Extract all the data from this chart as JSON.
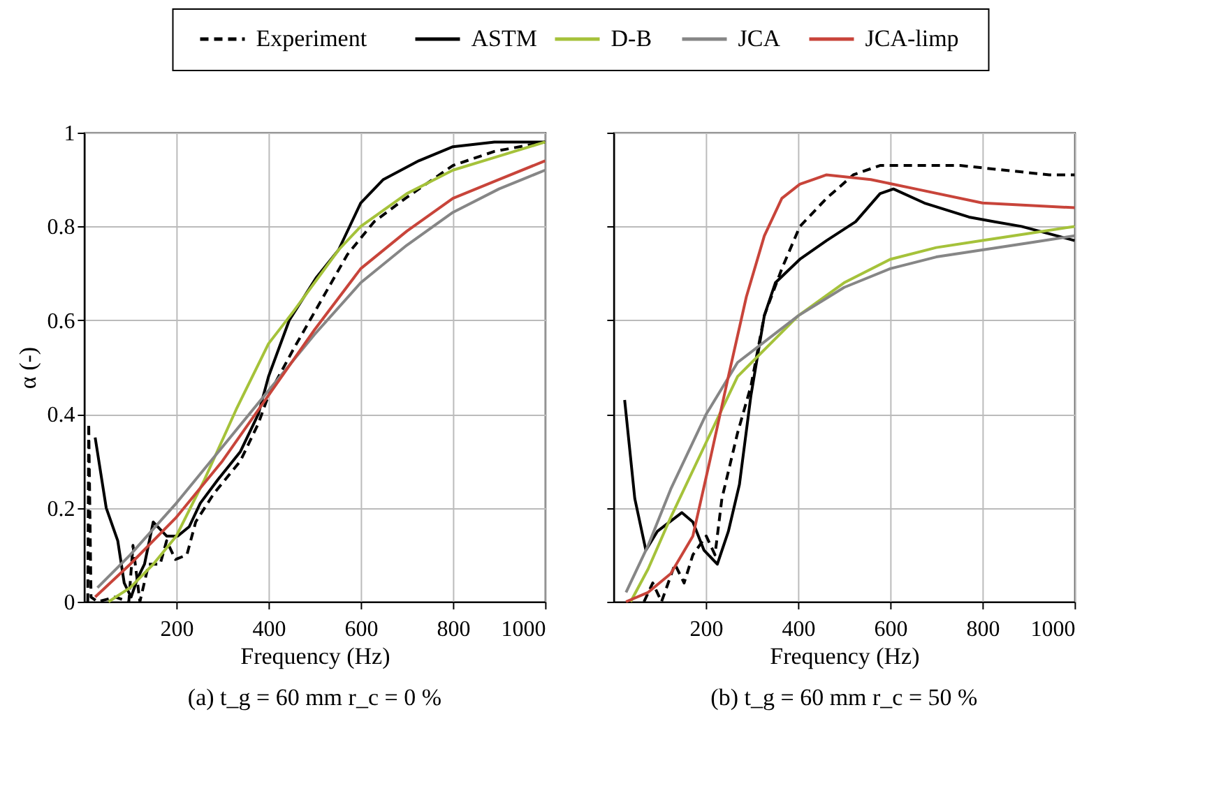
{
  "chart_data": [
    {
      "type": "line",
      "title": "(a) t_g = 60 mm r_c = 0 %",
      "xlabel": "Frequency (Hz)",
      "ylabel": "α (-)",
      "xlim": [
        0,
        1000
      ],
      "xticks": [
        200,
        400,
        600,
        800,
        1000
      ],
      "ylim": [
        0,
        1
      ],
      "yticks": [
        0,
        0.2,
        0.4,
        0.6,
        0.8,
        1
      ],
      "grid": true,
      "legend": "top",
      "series": [
        {
          "name": "Experiment",
          "color": "#000000",
          "line_style": "dashed",
          "x": [
            8,
            10,
            15,
            29,
            68,
            97,
            106,
            121,
            140,
            165,
            179,
            198,
            223,
            242,
            281,
            339,
            378,
            400,
            455,
            513,
            571,
            629,
            697,
            800,
            890,
            1000
          ],
          "values": [
            0,
            0.38,
            0.01,
            0,
            0.01,
            0,
            0.12,
            0,
            0.08,
            0.08,
            0.13,
            0.09,
            0.1,
            0.17,
            0.23,
            0.3,
            0.38,
            0.44,
            0.54,
            0.64,
            0.74,
            0.81,
            0.86,
            0.93,
            0.96,
            0.98
          ]
        },
        {
          "name": "ASTM",
          "color": "#000000",
          "line_style": "solid",
          "x": [
            24,
            48,
            73,
            87,
            102,
            116,
            131,
            150,
            179,
            203,
            228,
            252,
            290,
            339,
            378,
            400,
            445,
            503,
            552,
            600,
            649,
            726,
            800,
            890,
            1000
          ],
          "values": [
            0.35,
            0.2,
            0.13,
            0.04,
            0.01,
            0.05,
            0.08,
            0.17,
            0.14,
            0.14,
            0.16,
            0.21,
            0.26,
            0.32,
            0.4,
            0.48,
            0.6,
            0.69,
            0.75,
            0.85,
            0.9,
            0.94,
            0.97,
            0.98,
            0.98
          ]
        },
        {
          "name": "D-B",
          "color": "#a5c23a",
          "line_style": "solid",
          "x": [
            53,
            100,
            150,
            200,
            261,
            330,
            400,
            455,
            552,
            600,
            700,
            800,
            900,
            1000
          ],
          "values": [
            0,
            0.03,
            0.08,
            0.14,
            0.26,
            0.41,
            0.55,
            0.62,
            0.75,
            0.8,
            0.87,
            0.92,
            0.95,
            0.98
          ]
        },
        {
          "name": "JCA",
          "color": "#868686",
          "line_style": "solid",
          "x": [
            29,
            100,
            200,
            300,
            400,
            500,
            600,
            700,
            800,
            900,
            1000
          ],
          "values": [
            0.03,
            0.1,
            0.21,
            0.33,
            0.45,
            0.57,
            0.68,
            0.76,
            0.83,
            0.88,
            0.92
          ]
        },
        {
          "name": "JCA-limp",
          "color": "#c8443a",
          "line_style": "solid",
          "x": [
            24,
            100,
            200,
            300,
            400,
            500,
            600,
            700,
            800,
            900,
            1000
          ],
          "values": [
            0.01,
            0.08,
            0.18,
            0.3,
            0.44,
            0.58,
            0.71,
            0.79,
            0.86,
            0.9,
            0.94
          ]
        }
      ]
    },
    {
      "type": "line",
      "title": "(b) t_g = 60 mm r_c = 50 %",
      "xlabel": "Frequency (Hz)",
      "xlim": [
        0,
        1000
      ],
      "xticks": [
        200,
        400,
        600,
        800,
        1000
      ],
      "ylim": [
        0,
        1
      ],
      "yticks": [
        0,
        0.2,
        0.4,
        0.6,
        0.8,
        1
      ],
      "grid": true,
      "tick_labels": "x",
      "series": [
        {
          "color": "#000000",
          "line_style": "dashed",
          "x": [
            66,
            85,
            104,
            133,
            153,
            172,
            201,
            220,
            235,
            269,
            298,
            327,
            365,
            404,
            462,
            520,
            578,
            655,
            752,
            848,
            945,
            1000
          ],
          "values": [
            0,
            0.04,
            0,
            0.08,
            0.04,
            0.1,
            0.14,
            0.1,
            0.22,
            0.36,
            0.46,
            0.61,
            0.71,
            0.8,
            0.86,
            0.91,
            0.93,
            0.93,
            0.93,
            0.92,
            0.91,
            0.91
          ]
        },
        {
          "color": "#000000",
          "line_style": "solid",
          "x": [
            24,
            46,
            70,
            95,
            148,
            172,
            196,
            225,
            249,
            273,
            298,
            327,
            351,
            404,
            462,
            525,
            578,
            607,
            674,
            771,
            827,
            885,
            1000
          ],
          "values": [
            0.43,
            0.22,
            0.11,
            0.15,
            0.19,
            0.17,
            0.11,
            0.08,
            0.15,
            0.25,
            0.44,
            0.61,
            0.68,
            0.73,
            0.77,
            0.81,
            0.87,
            0.88,
            0.85,
            0.82,
            0.81,
            0.8,
            0.77
          ]
        },
        {
          "color": "#a5c23a",
          "line_style": "solid",
          "x": [
            37,
            75,
            124,
            201,
            269,
            401,
            500,
            600,
            700,
            800,
            900,
            1000
          ],
          "values": [
            0,
            0.07,
            0.18,
            0.34,
            0.48,
            0.61,
            0.68,
            0.73,
            0.755,
            0.77,
            0.785,
            0.8
          ]
        },
        {
          "color": "#868686",
          "line_style": "solid",
          "x": [
            27,
            75,
            124,
            201,
            269,
            401,
            500,
            600,
            700,
            800,
            900,
            1000
          ],
          "values": [
            0.02,
            0.12,
            0.24,
            0.4,
            0.51,
            0.61,
            0.67,
            0.71,
            0.735,
            0.75,
            0.765,
            0.78
          ]
        },
        {
          "color": "#c8443a",
          "line_style": "solid",
          "x": [
            27,
            75,
            124,
            172,
            211,
            249,
            288,
            327,
            365,
            404,
            462,
            558,
            655,
            800,
            1000
          ],
          "values": [
            0,
            0.02,
            0.06,
            0.14,
            0.31,
            0.48,
            0.65,
            0.78,
            0.86,
            0.89,
            0.91,
            0.9,
            0.88,
            0.85,
            0.84
          ]
        }
      ]
    }
  ]
}
